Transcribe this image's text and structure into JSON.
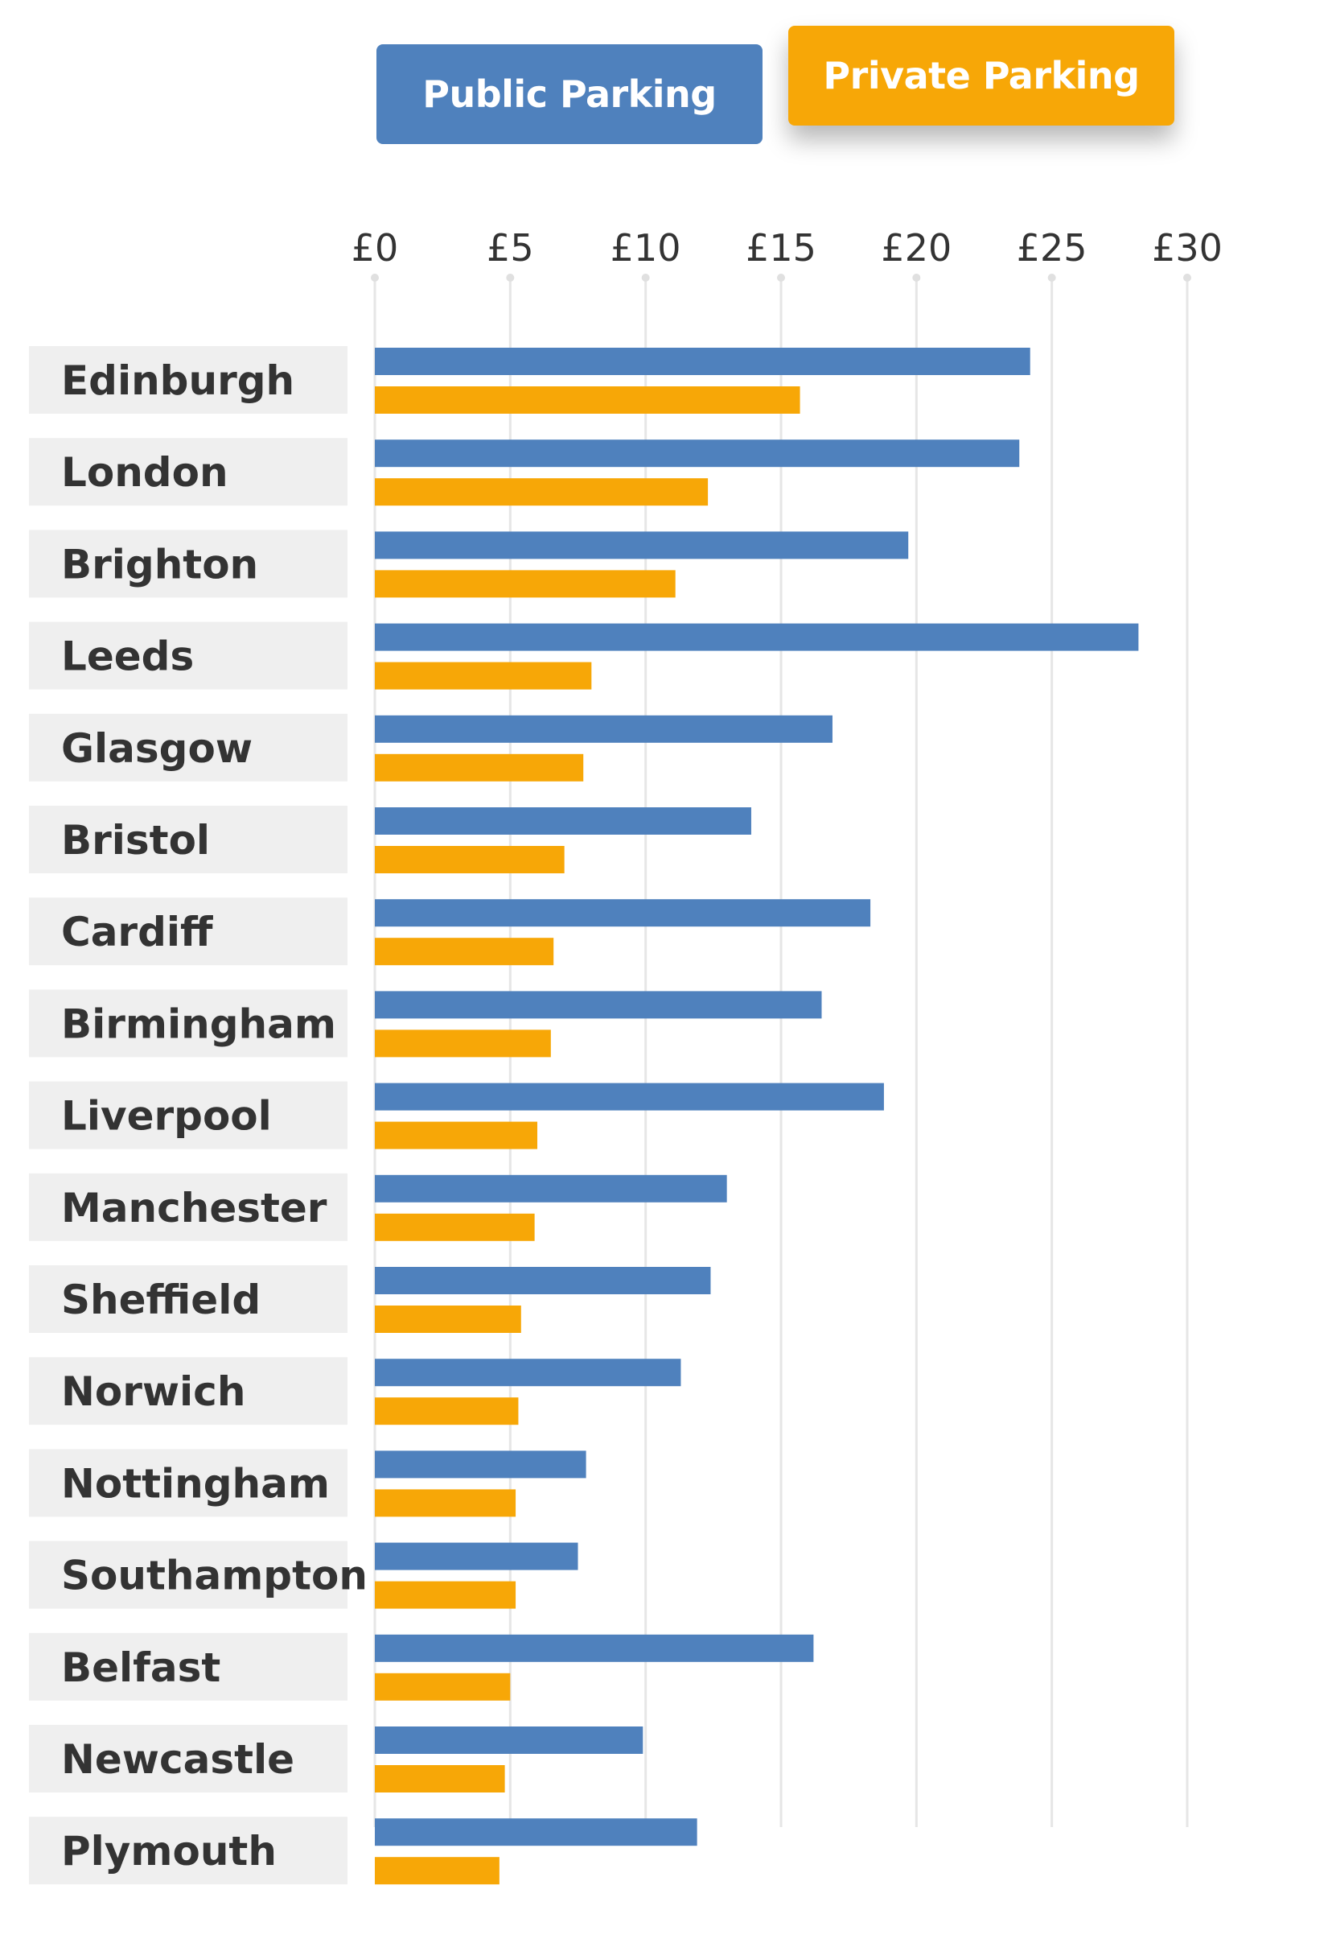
{
  "legend": {
    "public_label": "Public Parking",
    "private_label": "Private Parking"
  },
  "colors": {
    "public": "#4f81bd",
    "private": "#f7a707",
    "label_bg": "#efefef",
    "grid": "#e6e6e6"
  },
  "chart_data": {
    "type": "bar",
    "orientation": "horizontal",
    "categories": [
      "Edinburgh",
      "London",
      "Brighton",
      "Leeds",
      "Glasgow",
      "Bristol",
      "Cardiff",
      "Birmingham",
      "Liverpool",
      "Manchester",
      "Sheffield",
      "Norwich",
      "Nottingham",
      "Southampton",
      "Belfast",
      "Newcastle",
      "Plymouth"
    ],
    "series": [
      {
        "name": "Public Parking",
        "values": [
          24.2,
          23.8,
          19.7,
          28.2,
          16.9,
          13.9,
          18.3,
          16.5,
          18.8,
          13.0,
          12.4,
          11.3,
          7.8,
          7.5,
          16.2,
          9.9,
          11.9
        ]
      },
      {
        "name": "Private Parking",
        "values": [
          15.7,
          12.3,
          11.1,
          8.0,
          7.7,
          7.0,
          6.6,
          6.5,
          6.0,
          5.9,
          5.4,
          5.3,
          5.2,
          5.2,
          5.0,
          4.8,
          4.6
        ]
      }
    ],
    "x_ticks": [
      "£0",
      "£5",
      "£10",
      "£15",
      "£20",
      "£25",
      "£30"
    ],
    "xlim": [
      0,
      30
    ],
    "grid": true,
    "legend_position": "top"
  }
}
